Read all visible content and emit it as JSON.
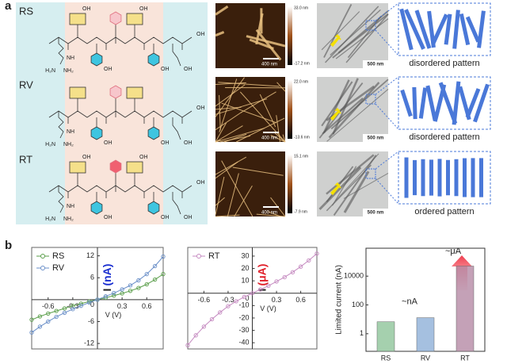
{
  "panel_a": {
    "label": "a",
    "rows": [
      {
        "name": "RS",
        "structure_labels": {
          "arg_nh": "NH",
          "arg_h2n": "H₂N",
          "arg_nh2": "NH₂",
          "res2_oh": "OH",
          "tyr1_oh": "OH",
          "res5_oh": "OH",
          "tyr2_oh": "OH",
          "glu_oh": "OH",
          "cterm_oh": "OH"
        },
        "afm_max": "33.0 nm",
        "afm_min": "-17.2 nm",
        "afm_scale": "400 nm",
        "tem_scale": "500 nm",
        "pattern": "disordered pattern"
      },
      {
        "name": "RV",
        "structure_labels": {
          "arg_nh": "NH",
          "arg_h2n": "H₂N",
          "arg_nh2": "NH₂",
          "tyr1_oh": "OH",
          "tyr2_oh": "OH",
          "glu_oh": "OH",
          "cterm_oh": "OH"
        },
        "afm_max": "22.0 nm",
        "afm_min": "-13.6 nm",
        "afm_scale": "400 nm",
        "tem_scale": "500 nm",
        "pattern": "disordered pattern"
      },
      {
        "name": "RT",
        "structure_labels": {
          "arg_nh": "NH",
          "arg_h2n": "H₂N",
          "arg_nh2": "NH₂",
          "res2_oh": "OH",
          "tyr1_oh": "OH",
          "res5_oh": "OH",
          "tyr2_oh": "OH",
          "glu_oh": "OH",
          "cterm_oh": "OH"
        },
        "afm_max": "15.1 nm",
        "afm_min": "-7.9 nm",
        "afm_scale": "400 nm",
        "tem_scale": "500 nm",
        "pattern": "ordered pattern"
      }
    ]
  },
  "panel_b": {
    "label": "b"
  },
  "chart_data": [
    {
      "type": "line",
      "x": [
        -0.8,
        -0.7,
        -0.6,
        -0.5,
        -0.4,
        -0.3,
        -0.2,
        -0.1,
        0,
        0.1,
        0.2,
        0.3,
        0.4,
        0.5,
        0.6,
        0.7,
        0.8
      ],
      "series": [
        {
          "name": "RS",
          "color": "#5a9e4a",
          "values": [
            -5.5,
            -4.6,
            -3.8,
            -3.1,
            -2.4,
            -1.7,
            -1.1,
            -0.5,
            0,
            0.5,
            1.1,
            1.7,
            2.4,
            3.2,
            4.2,
            5.5,
            7.0
          ]
        },
        {
          "name": "RV",
          "color": "#6a8fc8",
          "values": [
            -9,
            -7.4,
            -6,
            -4.7,
            -3.6,
            -2.6,
            -1.7,
            -0.8,
            0,
            0.9,
            1.8,
            2.8,
            3.9,
            5.3,
            7,
            9.2,
            11.8
          ]
        }
      ],
      "xlim": [
        -0.8,
        0.8
      ],
      "ylim": [
        -13.5,
        14.3
      ],
      "xticks": [
        -0.6,
        -0.3,
        0.3,
        0.6
      ],
      "yticks": [
        -12,
        -6,
        0,
        6,
        12
      ],
      "x_label": "V (V)",
      "y_label": "I",
      "y_label_unit": "(nA)",
      "y_label_unit_color": "#1a2fd0",
      "legend": "upper left"
    },
    {
      "type": "line",
      "x": [
        -0.8,
        -0.7,
        -0.6,
        -0.5,
        -0.4,
        -0.3,
        -0.2,
        -0.1,
        0,
        0.1,
        0.2,
        0.3,
        0.4,
        0.5,
        0.6,
        0.7,
        0.8
      ],
      "series": [
        {
          "name": "RT",
          "color": "#c58ac0",
          "values": [
            -42,
            -34,
            -27,
            -21,
            -15.5,
            -10.5,
            -6.5,
            -3,
            0,
            3,
            6,
            9.5,
            13,
            17,
            21.5,
            26.5,
            32
          ]
        }
      ],
      "xlim": [
        -0.8,
        0.8
      ],
      "ylim": [
        -45,
        37
      ],
      "xticks": [
        -0.6,
        -0.3,
        0.3,
        0.6
      ],
      "yticks": [
        -40,
        -30,
        -20,
        -10,
        0,
        10,
        20,
        30
      ],
      "x_label": "V (V)",
      "y_label": "I",
      "y_label_unit": "(μA)",
      "y_label_unit_color": "#e0202a",
      "legend": "upper left"
    },
    {
      "type": "bar",
      "categories": [
        "RS",
        "RV",
        "RT"
      ],
      "values": [
        6.8,
        13,
        50000
      ],
      "colors": [
        "#8fc49a",
        "#8eb0d8",
        "#b58aa5"
      ],
      "log_scale": true,
      "ylim": [
        0.06,
        870000
      ],
      "yticks": [
        1,
        100,
        10000
      ],
      "y_label": "Limited current (nA)",
      "annotations": [
        "~nA",
        "~μA"
      ],
      "annotation_colors": [
        "#222222",
        "#e0202a"
      ]
    }
  ]
}
